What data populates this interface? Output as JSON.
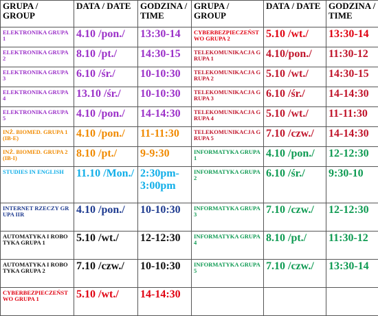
{
  "header": [
    "GRUPA / GROUP",
    "DATA / DATE",
    "GODZINA / TIME",
    "GRUPA / GROUP",
    "DATA / DATE",
    "GODZINA / TIME"
  ],
  "rows": [
    [
      "ELEKTRONIKA GRUPA 1",
      "4.10 /pon./",
      "13:30-14",
      "CYBERBEZPIECZEŃSTWO GRUPA 2",
      "5.10 /wt./",
      "13:30-14"
    ],
    [
      "ELEKTRONIKA GRUPA 2",
      "8.10 /pt./",
      "14:30-15",
      "TELEKOMUNIKACJA GRUPA 1",
      "4.10/pon./",
      "11:30-12"
    ],
    [
      "ELEKTRONIKA GRUPA 3",
      "6.10 /śr./",
      "10-10:30",
      "TELEKOMUNIKACJA GRUPA 2",
      "5.10 /wt./",
      "14:30-15"
    ],
    [
      "ELEKTRONIKA GRUPA 4",
      "13.10 /śr./",
      "10-10:30",
      "TELEKOMUNIKACJA GRUPA 3",
      "6.10 /śr./",
      "14-14:30"
    ],
    [
      "ELEKTRONIKA GRUPA 5",
      "4.10 /pon./",
      "14-14:30",
      "TELEKOMUNIKACJA GRUPA 4",
      "5.10 /wt./",
      "11-11:30"
    ],
    [
      "INŻ. BIOMED. GRUPA 1 (IB-E)",
      "4.10 /pon./",
      "11-11:30",
      "TELEKOMUNIKACJA GRUPA 5",
      "7.10 /czw./",
      "14-14:30"
    ],
    [
      "INŻ. BIOMED. GRUPA 2 (IB-I)",
      "8.10 /pt./",
      "9-9:30",
      "INFORMATYKA GRUPA 1",
      "4.10 /pon./",
      "12-12:30"
    ],
    [
      "STUDIES IN ENGLISH",
      "11.10 /Mon./",
      "2:30pm-3:00pm",
      "INFORMATYKA GRUPA 2",
      "6.10 /śr./",
      "9:30-10"
    ],
    [
      "INTERNET RZECZY GRUPA IIR",
      "4.10 /pon./",
      "10-10:30",
      "INFORMATYKA GRUPA 3",
      "7.10 /czw./",
      "12-12:30"
    ],
    [
      "AUTOMATYKA I ROBOTYKA GRUPA 1",
      "5.10 /wt./",
      "12-12:30",
      "INFORMATYKA GRUPA 4",
      "8.10 /pt./",
      "11:30-12"
    ],
    [
      "AUTOMATYKA I ROBOTYKA GRUPA 2",
      "7.10 /czw./",
      "10-10:30",
      "INFORMATYKA GRUPA 5",
      "7.10 /czw./",
      "13:30-14"
    ],
    [
      "CYBERBEZPIECZEŃSTWO GRUPA 1",
      "5.10 /wt./",
      "14-14:30"
    ]
  ]
}
